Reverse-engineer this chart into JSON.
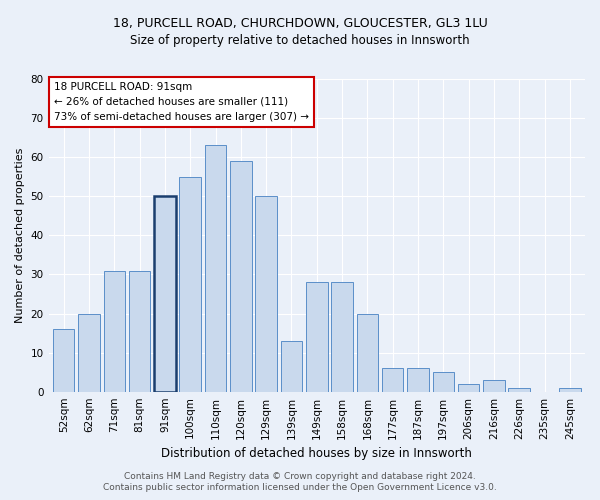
{
  "title1": "18, PURCELL ROAD, CHURCHDOWN, GLOUCESTER, GL3 1LU",
  "title2": "Size of property relative to detached houses in Innsworth",
  "xlabel": "Distribution of detached houses by size in Innsworth",
  "ylabel": "Number of detached properties",
  "categories": [
    "52sqm",
    "62sqm",
    "71sqm",
    "81sqm",
    "91sqm",
    "100sqm",
    "110sqm",
    "120sqm",
    "129sqm",
    "139sqm",
    "149sqm",
    "158sqm",
    "168sqm",
    "177sqm",
    "187sqm",
    "197sqm",
    "206sqm",
    "216sqm",
    "226sqm",
    "235sqm",
    "245sqm"
  ],
  "values": [
    16,
    20,
    31,
    31,
    50,
    55,
    63,
    59,
    50,
    13,
    28,
    28,
    20,
    6,
    6,
    5,
    2,
    3,
    1,
    0,
    1
  ],
  "highlight_index": 4,
  "bar_color": "#c9d9ed",
  "bar_edge_color": "#5b8fc9",
  "highlight_bar_edge_color": "#1a3e6e",
  "ylim": [
    0,
    80
  ],
  "yticks": [
    0,
    10,
    20,
    30,
    40,
    50,
    60,
    70,
    80
  ],
  "annotation_text": "18 PURCELL ROAD: 91sqm\n← 26% of detached houses are smaller (111)\n73% of semi-detached houses are larger (307) →",
  "annotation_box_color": "#ffffff",
  "annotation_box_edge_color": "#cc0000",
  "footer": "Contains HM Land Registry data © Crown copyright and database right 2024.\nContains public sector information licensed under the Open Government Licence v3.0.",
  "bg_color": "#eaf0f9",
  "plot_bg_color": "#eaf0f9",
  "grid_color": "#ffffff",
  "title_fontsize": 9,
  "subtitle_fontsize": 8.5,
  "xlabel_fontsize": 8.5,
  "ylabel_fontsize": 8,
  "tick_fontsize": 7.5,
  "footer_fontsize": 6.5,
  "ann_fontsize": 7.5
}
